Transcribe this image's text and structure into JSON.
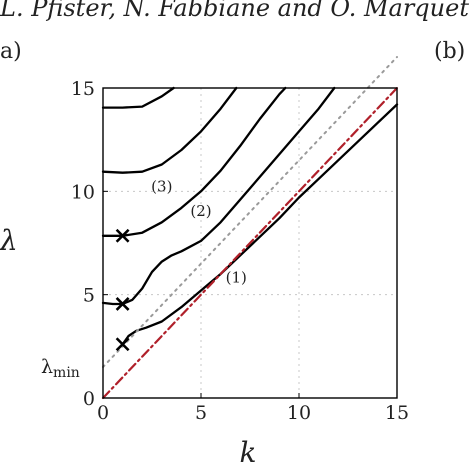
{
  "header": {
    "authors": "L. Pfister, N. Fabbiane and O. Marquet",
    "panel_a": "a)",
    "panel_b": "(b)"
  },
  "chart_data": {
    "type": "line",
    "xlabel": "k",
    "ylabel": "λ",
    "xlim": [
      0,
      15
    ],
    "ylim": [
      0,
      15
    ],
    "xticks": [
      0,
      5,
      10,
      15
    ],
    "yticks": [
      0,
      5,
      10,
      15
    ],
    "grid": true,
    "grid_style": "dotted",
    "annotation_lambda_min": {
      "text_main": "λ",
      "text_sub": "min",
      "y": 1.5
    },
    "series": [
      {
        "name": "(1)",
        "label_at": [
          6.8,
          5.6
        ],
        "color": "#000000",
        "points": [
          [
            1.0,
            2.6
          ],
          [
            1.3,
            3.0
          ],
          [
            1.7,
            3.25
          ],
          [
            2.2,
            3.4
          ],
          [
            3.0,
            3.7
          ],
          [
            4.0,
            4.4
          ],
          [
            5.0,
            5.2
          ],
          [
            6.0,
            6.0
          ],
          [
            7.0,
            6.9
          ],
          [
            8.0,
            7.8
          ],
          [
            9.0,
            8.7
          ],
          [
            10.0,
            9.7
          ],
          [
            11.0,
            10.6
          ],
          [
            12.0,
            11.5
          ],
          [
            13.0,
            12.4
          ],
          [
            14.0,
            13.3
          ],
          [
            15.0,
            14.2
          ]
        ]
      },
      {
        "name": "(2)",
        "label_at": [
          5.0,
          8.8
        ],
        "color": "#000000",
        "points": [
          [
            0,
            4.6
          ],
          [
            0.5,
            4.55
          ],
          [
            1.0,
            4.55
          ],
          [
            1.5,
            4.75
          ],
          [
            2.0,
            5.3
          ],
          [
            2.5,
            6.1
          ],
          [
            3.0,
            6.6
          ],
          [
            3.5,
            6.9
          ],
          [
            4.0,
            7.1
          ],
          [
            5.0,
            7.6
          ],
          [
            6.0,
            8.5
          ],
          [
            7.0,
            9.6
          ],
          [
            8.0,
            10.7
          ],
          [
            9.0,
            11.8
          ],
          [
            10.0,
            12.9
          ],
          [
            11.0,
            14.0
          ],
          [
            11.8,
            15.0
          ]
        ]
      },
      {
        "name": "(3)",
        "label_at": [
          3.0,
          10.0
        ],
        "color": "#000000",
        "points": [
          [
            0,
            7.85
          ],
          [
            1.0,
            7.85
          ],
          [
            2.0,
            8.0
          ],
          [
            3.0,
            8.5
          ],
          [
            4.0,
            9.2
          ],
          [
            5.0,
            10.0
          ],
          [
            6.0,
            11.0
          ],
          [
            7.0,
            12.2
          ],
          [
            8.0,
            13.5
          ],
          [
            9.0,
            14.7
          ],
          [
            9.3,
            15.0
          ]
        ]
      },
      {
        "name": "",
        "color": "#000000",
        "points": [
          [
            0,
            10.95
          ],
          [
            1.0,
            10.9
          ],
          [
            2.0,
            10.95
          ],
          [
            3.0,
            11.3
          ],
          [
            4.0,
            12.0
          ],
          [
            5.0,
            12.9
          ],
          [
            6.0,
            14.0
          ],
          [
            6.8,
            15.0
          ]
        ]
      },
      {
        "name": "",
        "color": "#000000",
        "points": [
          [
            0,
            14.05
          ],
          [
            1.0,
            14.05
          ],
          [
            2.0,
            14.1
          ],
          [
            3.0,
            14.6
          ],
          [
            3.6,
            15.0
          ]
        ]
      },
      {
        "name": "",
        "color": "#b0202a",
        "style": "dashdot",
        "points": [
          [
            0,
            0
          ],
          [
            15,
            15
          ]
        ]
      },
      {
        "name": "",
        "color": "#9a9a9a",
        "style": "dotted",
        "points": [
          [
            0,
            1.5
          ],
          [
            15,
            16.5
          ]
        ]
      }
    ],
    "markers": [
      {
        "shape": "x",
        "x": 1.0,
        "y": 2.6
      },
      {
        "shape": "x",
        "x": 1.0,
        "y": 4.55
      },
      {
        "shape": "x",
        "x": 1.0,
        "y": 7.85
      }
    ]
  }
}
